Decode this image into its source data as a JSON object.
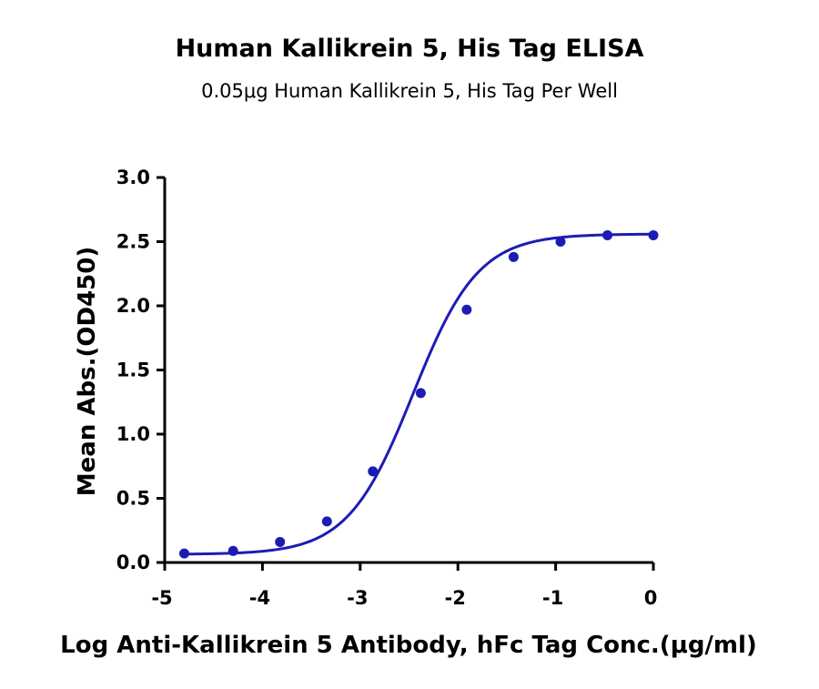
{
  "chart_data": {
    "type": "scatter",
    "title": "Human Kallikrein 5, His Tag ELISA",
    "subtitle": "0.05μg Human Kallikrein 5, His Tag Per Well",
    "xlabel": "Log Anti-Kallikrein 5 Antibody, hFc Tag Conc.(μg/ml)",
    "ylabel": "Mean Abs.(OD450)",
    "xlim": [
      -5,
      0
    ],
    "ylim": [
      0,
      3
    ],
    "x_ticks": [
      "-5",
      "-4",
      "-3",
      "-2",
      "-1",
      "0"
    ],
    "y_ticks": [
      "0.0",
      "0.5",
      "1.0",
      "1.5",
      "2.0",
      "2.5",
      "3.0"
    ],
    "grid": false,
    "legend": "none",
    "series": [
      {
        "points": [
          {
            "x": -4.8,
            "y": 0.07
          },
          {
            "x": -4.3,
            "y": 0.09
          },
          {
            "x": -3.82,
            "y": 0.16
          },
          {
            "x": -3.34,
            "y": 0.32
          },
          {
            "x": -2.87,
            "y": 0.71
          },
          {
            "x": -2.38,
            "y": 1.32
          },
          {
            "x": -1.91,
            "y": 1.97
          },
          {
            "x": -1.43,
            "y": 2.38
          },
          {
            "x": -0.95,
            "y": 2.5
          },
          {
            "x": -0.47,
            "y": 2.55
          },
          {
            "x": 0.0,
            "y": 2.55
          }
        ],
        "fit": {
          "bottom": 0.063,
          "top": 2.56,
          "log_ec50": -2.46,
          "hill_slope": 1.3
        }
      }
    ],
    "colors": {
      "series": "#1c1cb4",
      "axis": "#000000",
      "text": "#000000"
    }
  }
}
